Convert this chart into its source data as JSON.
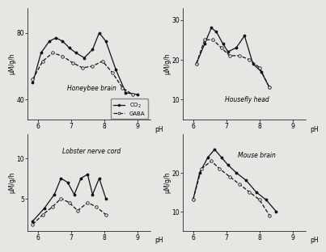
{
  "background": "#e8e6e2",
  "panel_bg": "#e8e6e2",
  "honeybee": {
    "title": "Honeybee brain",
    "ylabel": "μM/g/h",
    "yticks": [
      40,
      80
    ],
    "ylim": [
      28,
      95
    ],
    "xlim": [
      5.7,
      9.4
    ],
    "xticks": [
      6,
      7,
      8,
      9
    ],
    "co2_x": [
      5.85,
      6.1,
      6.35,
      6.55,
      6.75,
      6.95,
      7.15,
      7.4,
      7.65,
      7.85,
      8.05,
      8.35,
      8.65,
      9.0
    ],
    "co2_y": [
      50,
      68,
      75,
      77,
      75,
      71,
      68,
      65,
      70,
      80,
      75,
      58,
      44,
      43
    ],
    "gaba_x": [
      5.85,
      6.15,
      6.45,
      6.75,
      7.05,
      7.35,
      7.65,
      7.95,
      8.25,
      8.55,
      8.85
    ],
    "gaba_y": [
      52,
      63,
      68,
      66,
      62,
      59,
      60,
      63,
      56,
      47,
      43
    ]
  },
  "housefly": {
    "title": "Housefly head",
    "ylabel": "μM/g/h",
    "yticks": [
      10,
      20,
      30
    ],
    "ylim": [
      5,
      33
    ],
    "xlim": [
      5.7,
      9.4
    ],
    "xticks": [
      6,
      7,
      8,
      9
    ],
    "co2_x": [
      6.1,
      6.35,
      6.55,
      6.7,
      6.9,
      7.05,
      7.3,
      7.55,
      7.8,
      8.05,
      8.3
    ],
    "co2_y": [
      19,
      24,
      28,
      27,
      24,
      22,
      23,
      26,
      19,
      17,
      13
    ],
    "gaba_x": [
      6.1,
      6.35,
      6.6,
      6.85,
      7.1,
      7.4,
      7.7,
      8.0,
      8.3
    ],
    "gaba_y": [
      19,
      25,
      25,
      23,
      21,
      21,
      20,
      18,
      13
    ]
  },
  "lobster": {
    "title": "Lobster nerve cord",
    "ylabel": "μM/g/h",
    "yticks": [
      5,
      10
    ],
    "ylim": [
      1.0,
      13
    ],
    "xlim": [
      5.7,
      9.4
    ],
    "xticks": [
      6,
      7,
      8,
      9
    ],
    "co2_x": [
      5.85,
      6.2,
      6.5,
      6.7,
      6.9,
      7.1,
      7.3,
      7.5,
      7.65,
      7.85,
      8.05
    ],
    "co2_y": [
      2.2,
      3.8,
      5.5,
      7.5,
      7.0,
      5.5,
      7.5,
      8.0,
      5.5,
      7.5,
      5.0
    ],
    "gaba_x": [
      5.85,
      6.15,
      6.45,
      6.7,
      6.95,
      7.2,
      7.5,
      7.75,
      8.05
    ],
    "gaba_y": [
      1.8,
      3.0,
      4.0,
      5.0,
      4.5,
      3.5,
      4.5,
      4.0,
      3.0
    ]
  },
  "mouse": {
    "title": "Mouse brain",
    "ylabel": "μM/g/h",
    "yticks": [
      10,
      20
    ],
    "ylim": [
      5,
      30
    ],
    "xlim": [
      5.7,
      9.4
    ],
    "xticks": [
      6,
      7,
      8,
      9
    ],
    "co2_x": [
      6.0,
      6.2,
      6.45,
      6.65,
      6.85,
      7.05,
      7.3,
      7.6,
      7.9,
      8.2,
      8.5
    ],
    "co2_y": [
      13,
      20,
      24,
      26,
      24,
      22,
      20,
      18,
      15,
      13,
      10
    ],
    "gaba_x": [
      6.0,
      6.25,
      6.55,
      6.8,
      7.1,
      7.4,
      7.7,
      8.0,
      8.3
    ],
    "gaba_y": [
      13,
      21,
      23,
      21,
      19,
      17,
      15,
      13,
      9
    ]
  },
  "line_color": "#111111",
  "legend_co2": "CO$_2$",
  "legend_gaba": "GABA",
  "xlabel": "pH"
}
